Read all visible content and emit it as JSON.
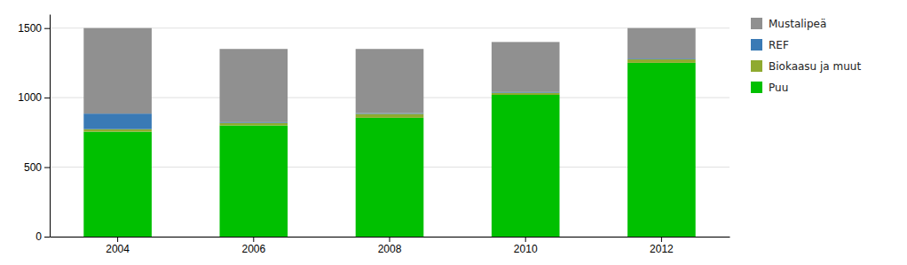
{
  "chart_data": {
    "type": "bar",
    "stacked": true,
    "categories": [
      "2004",
      "2006",
      "2008",
      "2010",
      "2012"
    ],
    "series": [
      {
        "name": "Puu",
        "color": "#00C000",
        "values": [
          755,
          800,
          855,
          1020,
          1250
        ]
      },
      {
        "name": "Biokaasu ja muut",
        "color": "#8FAA30",
        "values": [
          18,
          18,
          28,
          15,
          25
        ]
      },
      {
        "name": "REF",
        "color": "#3A7AB5",
        "values": [
          112,
          5,
          5,
          5,
          5
        ]
      },
      {
        "name": "Mustalipeä",
        "color": "#909090",
        "values": [
          615,
          527,
          462,
          360,
          220
        ]
      }
    ],
    "ylim": [
      0,
      1600
    ],
    "yticks": [
      0,
      500,
      1000,
      1500
    ],
    "grid": true,
    "legend": "right"
  }
}
